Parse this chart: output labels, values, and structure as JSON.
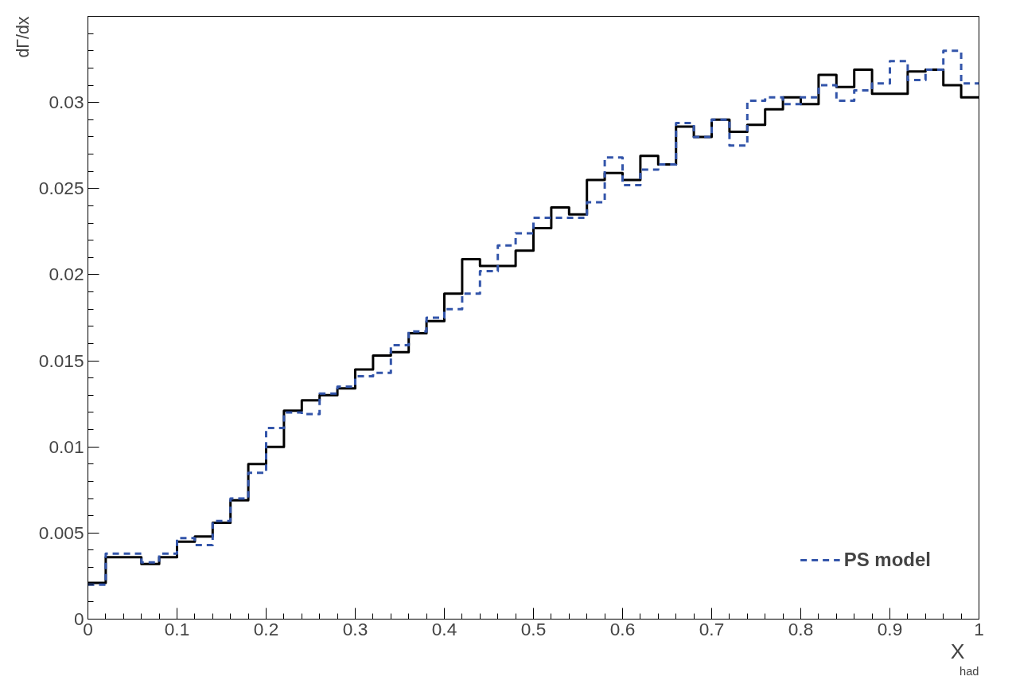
{
  "chart_data": {
    "type": "histogram",
    "ylabel": "dΓ/dx",
    "xlabel": "X$_{had}$",
    "bins": [
      0,
      0.02,
      0.04,
      0.06,
      0.08,
      0.1,
      0.12,
      0.14,
      0.16,
      0.18,
      0.2,
      0.22,
      0.24,
      0.26,
      0.28,
      0.3,
      0.32,
      0.34,
      0.36,
      0.38,
      0.4,
      0.42,
      0.44,
      0.46,
      0.48,
      0.5,
      0.52,
      0.54,
      0.56,
      0.58,
      0.6,
      0.62,
      0.64,
      0.66,
      0.68,
      0.7,
      0.72,
      0.74,
      0.76,
      0.78,
      0.8,
      0.82,
      0.84,
      0.86,
      0.88,
      0.9,
      0.92,
      0.94,
      0.96,
      0.98,
      1
    ],
    "series": [
      {
        "color": "#000000",
        "line_style": "solid",
        "values": [
          0.0021,
          0.0036,
          0.0036,
          0.0032,
          0.0036,
          0.0045,
          0.0048,
          0.0056,
          0.0069,
          0.009,
          0.01,
          0.0121,
          0.0127,
          0.013,
          0.0134,
          0.0145,
          0.0153,
          0.0155,
          0.0166,
          0.0173,
          0.0189,
          0.0209,
          0.0205,
          0.0205,
          0.0214,
          0.0227,
          0.0239,
          0.0235,
          0.0255,
          0.0259,
          0.0255,
          0.0269,
          0.0264,
          0.0286,
          0.028,
          0.029,
          0.0283,
          0.0287,
          0.0296,
          0.0303,
          0.0299,
          0.0316,
          0.0309,
          0.0319,
          0.0305,
          0.0305,
          0.0318,
          0.0319,
          0.031,
          0.0303
        ]
      },
      {
        "name": "PS model",
        "color": "#3355aa",
        "line_style": "dashed",
        "values": [
          0.002,
          0.0038,
          0.0038,
          0.0033,
          0.0038,
          0.0047,
          0.0043,
          0.0057,
          0.007,
          0.0085,
          0.0111,
          0.012,
          0.0119,
          0.0131,
          0.0135,
          0.0141,
          0.0143,
          0.0159,
          0.0167,
          0.0175,
          0.018,
          0.0189,
          0.0202,
          0.0217,
          0.0224,
          0.0233,
          0.0233,
          0.0233,
          0.0242,
          0.0268,
          0.0252,
          0.0261,
          0.0264,
          0.0288,
          0.028,
          0.029,
          0.0275,
          0.0301,
          0.0303,
          0.0299,
          0.0303,
          0.031,
          0.0301,
          0.0307,
          0.0311,
          0.0324,
          0.0313,
          0.0319,
          0.033,
          0.0311
        ]
      }
    ],
    "xlim": [
      0,
      1
    ],
    "ylim": [
      0,
      0.035
    ],
    "xticks": [
      0,
      0.1,
      0.2,
      0.3,
      0.4,
      0.5,
      0.6,
      0.7,
      0.8,
      0.9,
      1
    ],
    "yticks": [
      0,
      0.005,
      0.01,
      0.015,
      0.02,
      0.025,
      0.03
    ],
    "grid": false,
    "legend": "bottom right"
  }
}
